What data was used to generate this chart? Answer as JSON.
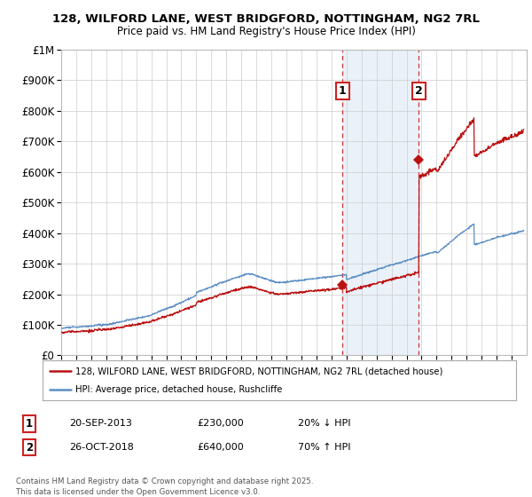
{
  "title": "128, WILFORD LANE, WEST BRIDGFORD, NOTTINGHAM, NG2 7RL",
  "subtitle": "Price paid vs. HM Land Registry's House Price Index (HPI)",
  "ylabel_max": 1000000,
  "yticks": [
    0,
    100000,
    200000,
    300000,
    400000,
    500000,
    600000,
    700000,
    800000,
    900000,
    1000000
  ],
  "ytick_labels": [
    "£0",
    "£100K",
    "£200K",
    "£300K",
    "£400K",
    "£500K",
    "£600K",
    "£700K",
    "£800K",
    "£900K",
    "£1M"
  ],
  "hpi_color": "#5b8ec4",
  "price_color": "#bb1111",
  "sale1_date": 2013.72,
  "sale1_price": 230000,
  "sale2_date": 2018.82,
  "sale2_price": 640000,
  "vline_color": "#cc3333",
  "shade_color": "#dde8f5",
  "footer": "Contains HM Land Registry data © Crown copyright and database right 2025.\nThis data is licensed under the Open Government Licence v3.0.",
  "legend1_label": "128, WILFORD LANE, WEST BRIDGFORD, NOTTINGHAM, NG2 7RL (detached house)",
  "legend2_label": "HPI: Average price, detached house, Rushcliffe",
  "row1_num": "1",
  "row1_date": "20-SEP-2013",
  "row1_price": "£230,000",
  "row1_hpi": "20% ↓ HPI",
  "row2_num": "2",
  "row2_date": "26-OCT-2018",
  "row2_price": "£640,000",
  "row2_hpi": "70% ↑ HPI",
  "xmin": 1995,
  "xmax": 2026
}
